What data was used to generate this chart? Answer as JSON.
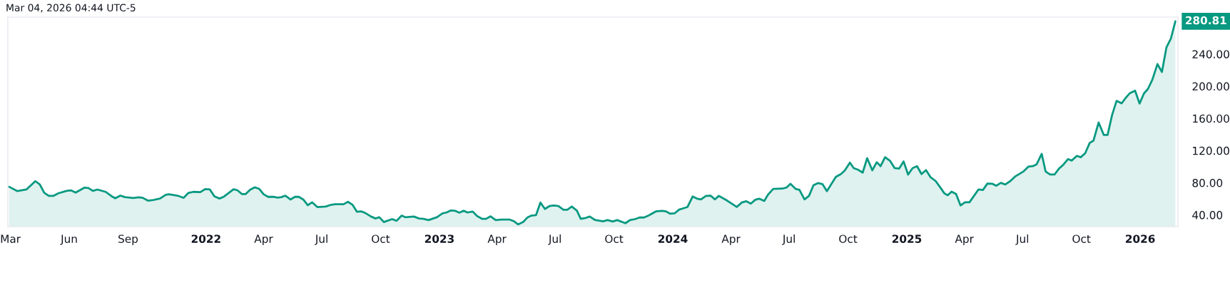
{
  "chart_data": {
    "type": "area",
    "annotations": [
      "Mar 04, 2026 04:44 UTC-5",
      {
        "text": "280.81",
        "x": "2026-02-25",
        "y": 280.81
      }
    ],
    "xlim": [
      "2021-02-25",
      "2026-03-01"
    ],
    "ylim": [
      25.5,
      286
    ],
    "xticks": [
      {
        "value": "2021-03-01",
        "label": "Mar"
      },
      {
        "value": "2021-06-01",
        "label": "Jun"
      },
      {
        "value": "2021-09-01",
        "label": "Sep"
      },
      {
        "value": "2022-01-01",
        "label": "2022"
      },
      {
        "value": "2022-04-01",
        "label": "Apr"
      },
      {
        "value": "2022-07-01",
        "label": "Jul"
      },
      {
        "value": "2022-10-01",
        "label": "Oct"
      },
      {
        "value": "2023-01-01",
        "label": "2023"
      },
      {
        "value": "2023-04-01",
        "label": "Apr"
      },
      {
        "value": "2023-07-01",
        "label": "Jul"
      },
      {
        "value": "2023-10-01",
        "label": "Oct"
      },
      {
        "value": "2024-01-01",
        "label": "2024"
      },
      {
        "value": "2024-04-01",
        "label": "Apr"
      },
      {
        "value": "2024-07-01",
        "label": "Jul"
      },
      {
        "value": "2024-10-01",
        "label": "Oct"
      },
      {
        "value": "2025-01-01",
        "label": "2025"
      },
      {
        "value": "2025-04-01",
        "label": "Apr"
      },
      {
        "value": "2025-07-01",
        "label": "Jul"
      },
      {
        "value": "2025-10-01",
        "label": "Oct"
      },
      {
        "value": "2026-01-01",
        "label": "2026"
      }
    ],
    "yticks": [
      {
        "value": 40,
        "label": "40.00"
      },
      {
        "value": 80,
        "label": "80.00"
      },
      {
        "value": 120,
        "label": "120.00"
      },
      {
        "value": 160,
        "label": "160.00"
      },
      {
        "value": 200,
        "label": "200.00"
      },
      {
        "value": 240,
        "label": "240.00"
      }
    ],
    "grid": false,
    "legend": false,
    "series": [
      {
        "color": "#089981",
        "x": [
          "2021-02-27",
          "2021-03-12",
          "2021-03-26",
          "2021-04-09",
          "2021-04-16",
          "2021-04-23",
          "2021-04-30",
          "2021-05-07",
          "2021-05-15",
          "2021-05-28",
          "2021-06-04",
          "2021-06-11",
          "2021-06-25",
          "2021-07-01",
          "2021-07-08",
          "2021-07-15",
          "2021-07-28",
          "2021-08-06",
          "2021-08-12",
          "2021-08-20",
          "2021-08-27",
          "2021-09-09",
          "2021-09-18",
          "2021-09-24",
          "2021-10-02",
          "2021-10-09",
          "2021-10-21",
          "2021-10-30",
          "2021-11-04",
          "2021-11-17",
          "2021-11-27",
          "2021-12-04",
          "2021-12-12",
          "2021-12-23",
          "2021-12-31",
          "2022-01-07",
          "2022-01-14",
          "2022-01-22",
          "2022-01-29",
          "2022-02-13",
          "2022-02-19",
          "2022-02-26",
          "2022-03-04",
          "2022-03-11",
          "2022-03-18",
          "2022-03-25",
          "2022-04-01",
          "2022-04-08",
          "2022-04-16",
          "2022-04-23",
          "2022-04-29",
          "2022-05-05",
          "2022-05-13",
          "2022-05-20",
          "2022-05-26",
          "2022-06-02",
          "2022-06-09",
          "2022-06-16",
          "2022-06-24",
          "2022-07-07",
          "2022-07-16",
          "2022-07-22",
          "2022-08-04",
          "2022-08-11",
          "2022-08-18",
          "2022-08-25",
          "2022-09-01",
          "2022-09-07",
          "2022-09-16",
          "2022-09-23",
          "2022-09-29",
          "2022-10-06",
          "2022-10-19",
          "2022-10-26",
          "2022-11-03",
          "2022-11-09",
          "2022-11-22",
          "2022-11-30",
          "2022-12-07",
          "2022-12-15",
          "2022-12-28",
          "2023-01-06",
          "2023-01-12",
          "2023-01-19",
          "2023-01-26",
          "2023-02-01",
          "2023-02-08",
          "2023-02-14",
          "2023-02-22",
          "2023-03-01",
          "2023-03-09",
          "2023-03-15",
          "2023-03-22",
          "2023-03-30",
          "2023-04-08",
          "2023-04-21",
          "2023-04-27",
          "2023-05-04",
          "2023-05-12",
          "2023-05-19",
          "2023-05-25",
          "2023-06-01",
          "2023-06-08",
          "2023-06-15",
          "2023-06-22",
          "2023-06-29",
          "2023-07-06",
          "2023-07-14",
          "2023-07-20",
          "2023-07-27",
          "2023-08-04",
          "2023-08-10",
          "2023-08-18",
          "2023-08-24",
          "2023-09-01",
          "2023-09-14",
          "2023-09-21",
          "2023-09-29",
          "2023-10-06",
          "2023-10-19",
          "2023-10-26",
          "2023-11-03",
          "2023-11-10",
          "2023-11-17",
          "2023-11-24",
          "2023-12-06",
          "2023-12-15",
          "2023-12-21",
          "2023-12-28",
          "2024-01-04",
          "2024-01-11",
          "2024-01-17",
          "2024-01-24",
          "2024-02-01",
          "2024-02-08",
          "2024-02-14",
          "2024-02-22",
          "2024-02-29",
          "2024-03-07",
          "2024-03-13",
          "2024-03-26",
          "2024-04-10",
          "2024-04-18",
          "2024-04-25",
          "2024-05-02",
          "2024-05-09",
          "2024-05-15",
          "2024-05-23",
          "2024-05-29",
          "2024-06-06",
          "2024-06-20",
          "2024-06-27",
          "2024-07-03",
          "2024-07-11",
          "2024-07-17",
          "2024-07-25",
          "2024-08-01",
          "2024-08-08",
          "2024-08-15",
          "2024-08-22",
          "2024-08-29",
          "2024-09-12",
          "2024-09-20",
          "2024-09-26",
          "2024-10-04",
          "2024-10-10",
          "2024-10-17",
          "2024-10-24",
          "2024-10-31",
          "2024-11-08",
          "2024-11-15",
          "2024-11-21",
          "2024-11-28",
          "2024-12-06",
          "2024-12-13",
          "2024-12-20",
          "2024-12-27",
          "2025-01-03",
          "2025-01-10",
          "2025-01-17",
          "2025-01-24",
          "2025-01-31",
          "2025-02-07",
          "2025-02-15",
          "2025-02-22",
          "2025-03-01",
          "2025-03-06",
          "2025-03-12",
          "2025-03-19",
          "2025-03-26",
          "2025-04-02",
          "2025-04-09",
          "2025-04-23",
          "2025-04-30",
          "2025-05-07",
          "2025-05-15",
          "2025-05-21",
          "2025-05-28",
          "2025-06-04",
          "2025-06-12",
          "2025-06-20",
          "2025-07-02",
          "2025-07-10",
          "2025-07-17",
          "2025-07-23",
          "2025-07-31",
          "2025-08-06",
          "2025-08-13",
          "2025-08-20",
          "2025-08-27",
          "2025-09-03",
          "2025-09-10",
          "2025-09-16",
          "2025-09-24",
          "2025-09-30",
          "2025-10-07",
          "2025-10-14",
          "2025-10-20",
          "2025-10-28",
          "2025-11-05",
          "2025-11-11",
          "2025-11-18",
          "2025-11-25",
          "2025-12-03",
          "2025-12-10",
          "2025-12-16",
          "2025-12-24",
          "2025-12-31",
          "2026-01-07",
          "2026-01-13",
          "2026-01-20",
          "2026-01-28",
          "2026-02-04",
          "2026-02-11",
          "2026-02-18",
          "2026-02-25"
        ],
        "values": [
          75.0,
          69.6,
          71.6,
          82.0,
          77.8,
          67.5,
          63.7,
          63.7,
          66.9,
          69.9,
          70.5,
          67.8,
          74.0,
          73.4,
          69.9,
          71.6,
          68.7,
          63.4,
          60.7,
          64.0,
          62.2,
          61.0,
          61.9,
          61.3,
          57.8,
          58.3,
          60.4,
          65.1,
          65.7,
          64.0,
          61.3,
          67.2,
          68.7,
          68.4,
          72.2,
          71.6,
          63.1,
          60.4,
          62.8,
          71.9,
          70.7,
          66.0,
          66.0,
          71.3,
          74.3,
          72.5,
          65.7,
          62.5,
          62.5,
          61.6,
          62.2,
          64.0,
          59.2,
          62.5,
          62.5,
          59.2,
          52.1,
          55.7,
          49.8,
          50.4,
          52.7,
          53.3,
          53.3,
          56.3,
          52.7,
          43.9,
          44.4,
          42.4,
          38.0,
          35.6,
          37.1,
          31.2,
          34.8,
          32.7,
          39.2,
          37.1,
          38.0,
          35.6,
          35.1,
          33.6,
          37.1,
          42.1,
          43.0,
          45.6,
          45.0,
          42.7,
          45.3,
          43.0,
          44.2,
          38.5,
          35.1,
          35.1,
          38.3,
          33.6,
          34.2,
          34.2,
          32.4,
          28.2,
          31.2,
          37.1,
          39.2,
          39.7,
          55.4,
          47.4,
          51.0,
          51.8,
          51.0,
          46.5,
          46.5,
          50.4,
          45.3,
          35.1,
          36.3,
          38.0,
          33.9,
          32.1,
          33.6,
          31.8,
          33.6,
          29.7,
          33.6,
          34.8,
          36.8,
          36.8,
          39.2,
          44.5,
          45.1,
          44.5,
          41.5,
          42.1,
          46.6,
          48.1,
          49.9,
          62.9,
          60.2,
          59.3,
          63.7,
          64.0,
          59.3,
          63.7,
          57.8,
          49.9,
          55.5,
          57.0,
          54.1,
          58.8,
          60.2,
          57.3,
          65.3,
          72.4,
          72.7,
          74.2,
          78.6,
          72.4,
          71.2,
          59.3,
          63.7,
          76.9,
          79.6,
          78.4,
          69.5,
          87.3,
          90.8,
          95.2,
          105.0,
          98.2,
          96.1,
          92.6,
          110.6,
          95.5,
          105.6,
          100.6,
          111.8,
          107.1,
          98.2,
          97.6,
          106.5,
          90.2,
          98.2,
          100.6,
          90.8,
          95.8,
          87.0,
          82.2,
          74.6,
          66.6,
          64.5,
          69.0,
          66.0,
          51.8,
          55.7,
          55.7,
          71.6,
          71.0,
          79.0,
          78.7,
          76.3,
          79.9,
          77.8,
          82.2,
          88.1,
          93.8,
          100.0,
          100.6,
          102.9,
          115.9,
          94.1,
          90.2,
          90.2,
          97.6,
          102.6,
          109.4,
          107.6,
          113.5,
          111.8,
          116.8,
          129.5,
          132.5,
          154.9,
          139.5,
          139.5,
          164.1,
          181.8,
          178.8,
          186.2,
          191.5,
          194.5,
          178.5,
          191.2,
          196.5,
          208.1,
          227.6,
          217.8,
          248.2,
          259.2,
          280.81
        ]
      }
    ]
  }
}
